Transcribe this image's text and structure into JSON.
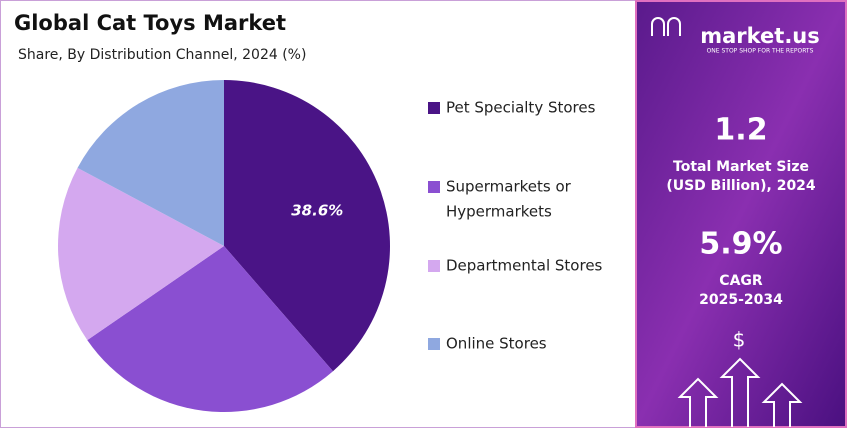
{
  "chart_data": {
    "type": "pie",
    "title": "Global Cat Toys Market",
    "subtitle": "Share, By Distribution Channel, 2024 (%)",
    "categories": [
      "Pet Specialty Stores",
      "Supermarkets or Hypermarkets",
      "Departmental Stores",
      "Online Stores"
    ],
    "legend_lines": [
      [
        "Pet Specialty Stores"
      ],
      [
        "Supermarkets or",
        "Hypermarkets"
      ],
      [
        "Departmental Stores"
      ],
      [
        "Online Stores"
      ]
    ],
    "values": [
      38.6,
      26.8,
      17.4,
      17.2
    ],
    "value_labels": [
      "38.6%",
      null,
      null,
      null
    ],
    "colors": [
      "#4a1486",
      "#8a4fd1",
      "#d4a8ef",
      "#8fa8e0"
    ],
    "legend": "right"
  },
  "panel": {
    "brand": "market.us",
    "tagline": "ONE STOP SHOP FOR THE REPORTS",
    "market_size": "1.2",
    "market_size_label": [
      "Total Market Size",
      "(USD Billion), 2024"
    ],
    "cagr": "5.9%",
    "cagr_label": [
      "CAGR",
      "2025-2034"
    ],
    "icon": "$"
  }
}
